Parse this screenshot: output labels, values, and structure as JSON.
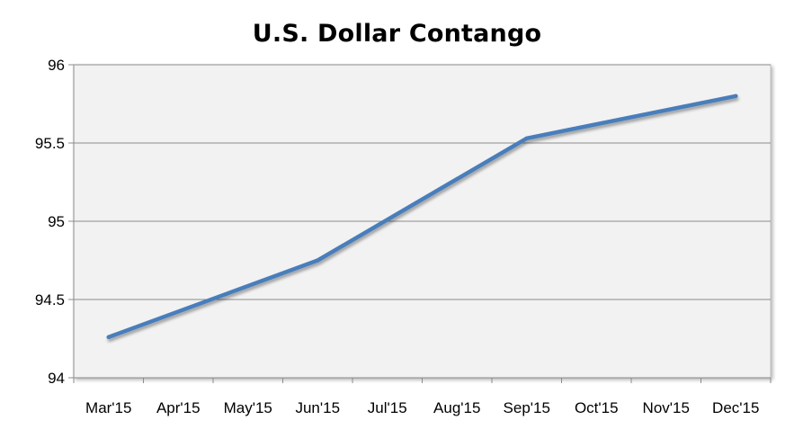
{
  "chart_data": {
    "type": "line",
    "title": "U.S. Dollar Contango",
    "xlabel": "",
    "ylabel": "",
    "categories": [
      "Mar'15",
      "Apr'15",
      "May'15",
      "Jun'15",
      "Jul'15",
      "Aug'15",
      "Sep'15",
      "Oct'15",
      "Nov'15",
      "Dec'15"
    ],
    "series": [
      {
        "values": [
          94.26,
          null,
          null,
          94.75,
          null,
          null,
          95.53,
          null,
          null,
          95.8
        ],
        "color": "#4a7ebb"
      }
    ],
    "ylim": [
      94,
      96
    ],
    "yticks": [
      94,
      94.5,
      95,
      95.5,
      96
    ],
    "ytick_labels": [
      "94",
      "94.5",
      "95",
      "95.5",
      "96"
    ],
    "grid": true,
    "legend": "none",
    "colors": {
      "plot_background": "#f2f2f2",
      "gridline": "#8c8c8c",
      "axis": "#8c8c8c",
      "line": "#4a7ebb"
    }
  }
}
